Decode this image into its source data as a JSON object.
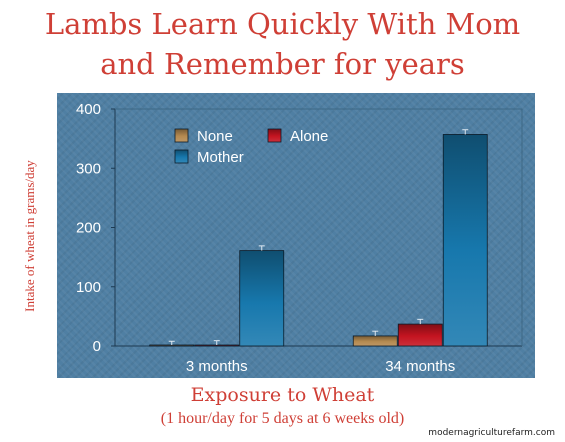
{
  "chart_data": {
    "type": "bar",
    "title": "Lambs Learn Quickly With Mom and Remember for years",
    "title_lines": [
      "Lambs Learn Quickly With Mom",
      "and Remember for years"
    ],
    "xlabel": "Exposure to Wheat",
    "xlabel_note": "(1 hour/day for 5 days at 6 weeks old)",
    "ylabel": "Intake of wheat in grams/day",
    "categories": [
      "3 months",
      "34 months"
    ],
    "ylim": [
      0,
      400
    ],
    "yticks": [
      0,
      100,
      200,
      300,
      400
    ],
    "grid": false,
    "legend_position": "top-left",
    "series": [
      {
        "name": "None",
        "values": [
          0,
          17
        ],
        "errors": [
          8,
          8
        ],
        "color": "#b58a50"
      },
      {
        "name": "Alone",
        "values": [
          1,
          37
        ],
        "errors": [
          8,
          8
        ],
        "color": "#c41420"
      },
      {
        "name": "Mother",
        "values": [
          161,
          357
        ],
        "errors": [
          8,
          8
        ],
        "color": "#1778ad"
      }
    ]
  },
  "watermark": "modernagriculturefarm.com",
  "colors": {
    "panel_background": "#4f7fa3",
    "title_red": "#cf3f36",
    "axis_text": "#ffffff"
  }
}
